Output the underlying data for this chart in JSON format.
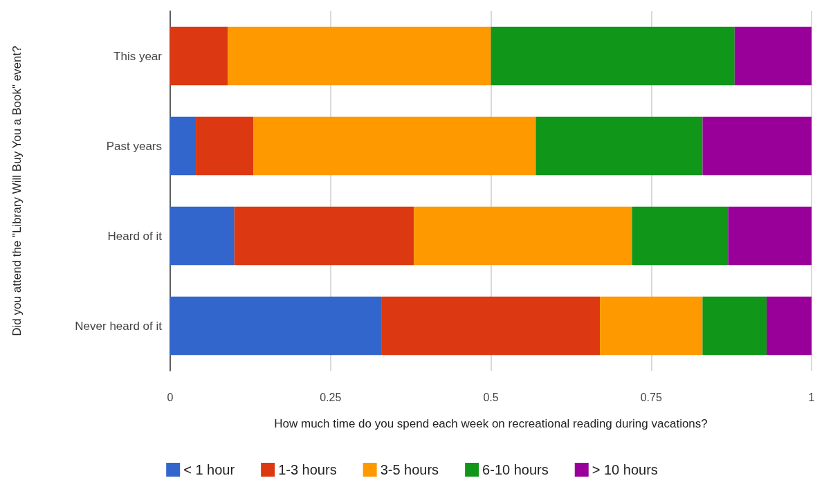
{
  "chart_data": {
    "type": "bar",
    "orientation": "horizontal",
    "stacked": true,
    "ylabel": "Did you attend the \"Library Will Buy You a Book\" event?",
    "xlabel": "How much time do you spend each week on recreational reading during vacations?",
    "categories": [
      "This year",
      "Past years",
      "Heard of it",
      "Never heard of it"
    ],
    "series": [
      {
        "name": "< 1 hour",
        "color": "#3366cc",
        "values": [
          0,
          0.04,
          0.1,
          0.33
        ]
      },
      {
        "name": "1-3 hours",
        "color": "#dc3912",
        "values": [
          0.09,
          0.09,
          0.28,
          0.34
        ]
      },
      {
        "name": "3-5 hours",
        "color": "#ff9900",
        "values": [
          0.41,
          0.44,
          0.34,
          0.16
        ]
      },
      {
        "name": "6-10 hours",
        "color": "#109618",
        "values": [
          0.38,
          0.26,
          0.15,
          0.1
        ]
      },
      {
        "name": "> 10 hours",
        "color": "#990099",
        "values": [
          0.12,
          0.17,
          0.13,
          0.07
        ]
      }
    ],
    "xlim": [
      0,
      1
    ],
    "xticks": [
      0,
      0.25,
      0.5,
      0.75,
      1
    ],
    "grid": "x",
    "legend": "bottom"
  }
}
